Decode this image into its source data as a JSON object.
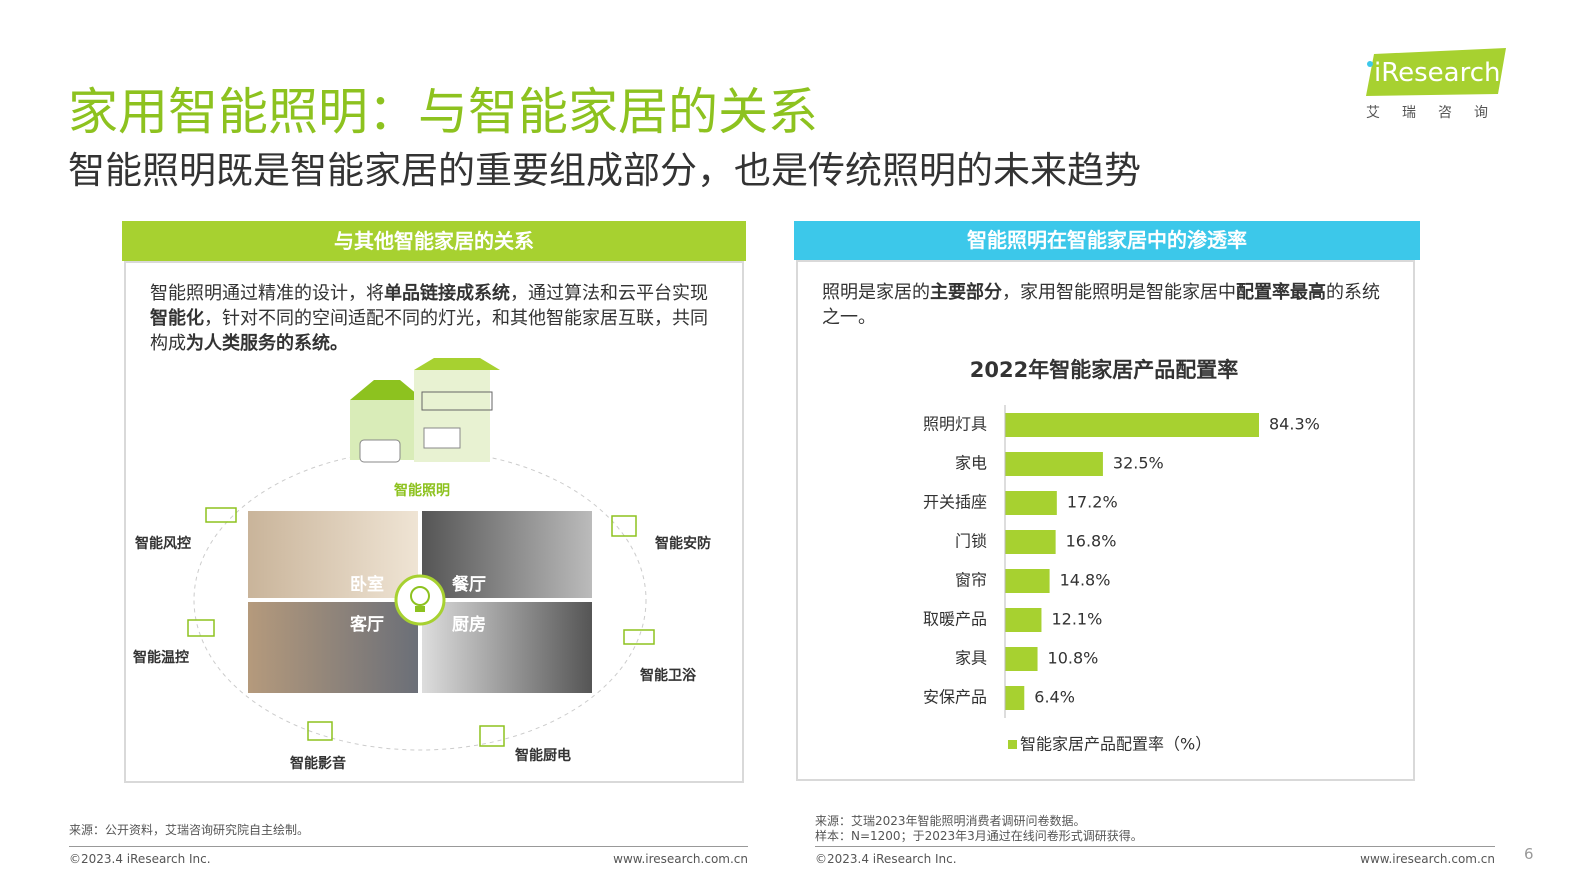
{
  "header": {
    "title": "家用智能照明：与智能家居的关系",
    "subtitle": "智能照明既是智能家居的重要组成部分，也是传统照明的未来趋势",
    "logo": "iResearch",
    "logo_sub": "艾瑞咨询"
  },
  "left_panel": {
    "title": "与其他智能家居的关系",
    "text_runs": [
      {
        "text": "智能照明通过精准的设计，将",
        "bold": false
      },
      {
        "text": "单品链接成系统",
        "bold": true
      },
      {
        "text": "，通过算法和云平台实现",
        "bold": false
      },
      {
        "text": "智能化",
        "bold": true
      },
      {
        "text": "，针对不同的空间适配不同的灯光，和其他智能家居互联，共同构成",
        "bold": false
      },
      {
        "text": "为人类服务的系统。",
        "bold": true
      }
    ],
    "diagram": {
      "center": "智能照明",
      "rooms": [
        "卧室",
        "餐厅",
        "客厅",
        "厨房"
      ],
      "devices": [
        "智能风控",
        "智能安防",
        "智能温控",
        "智能卫浴",
        "智能影音",
        "智能厨电"
      ]
    }
  },
  "right_panel": {
    "title": "智能照明在智能家居中的渗透率",
    "text_runs": [
      {
        "text": "照明是家居的",
        "bold": false
      },
      {
        "text": "主要部分",
        "bold": true
      },
      {
        "text": "，家用智能照明是智能家居中",
        "bold": false
      },
      {
        "text": "配置率最高",
        "bold": true
      },
      {
        "text": "的系统之一。",
        "bold": false
      }
    ]
  },
  "chart_data": {
    "type": "bar",
    "orientation": "horizontal",
    "title": "2022年智能家居产品配置率",
    "categories": [
      "照明灯具",
      "家电",
      "开关插座",
      "门锁",
      "窗帘",
      "取暖产品",
      "家具",
      "安保产品"
    ],
    "series": [
      {
        "name": "智能家居产品配置率（%）",
        "color": "#a7d130",
        "values": [
          84.3,
          32.5,
          17.2,
          16.8,
          14.8,
          12.1,
          10.8,
          6.4
        ],
        "value_labels": [
          "84.3%",
          "32.5%",
          "17.2%",
          "16.8%",
          "14.8%",
          "12.1%",
          "10.8%",
          "6.4%"
        ]
      }
    ],
    "legend": "bottom"
  },
  "footer": {
    "left_source": "来源：公开资料，艾瑞咨询研究院自主绘制。",
    "right_source": [
      "来源：艾瑞2023年智能照明消费者调研问卷数据。",
      "样本：N=1200；于2023年3月通过在线问卷形式调研获得。"
    ],
    "copyright": "©2023.4 iResearch Inc.",
    "url": "www.iresearch.com.cn",
    "page": "6"
  }
}
